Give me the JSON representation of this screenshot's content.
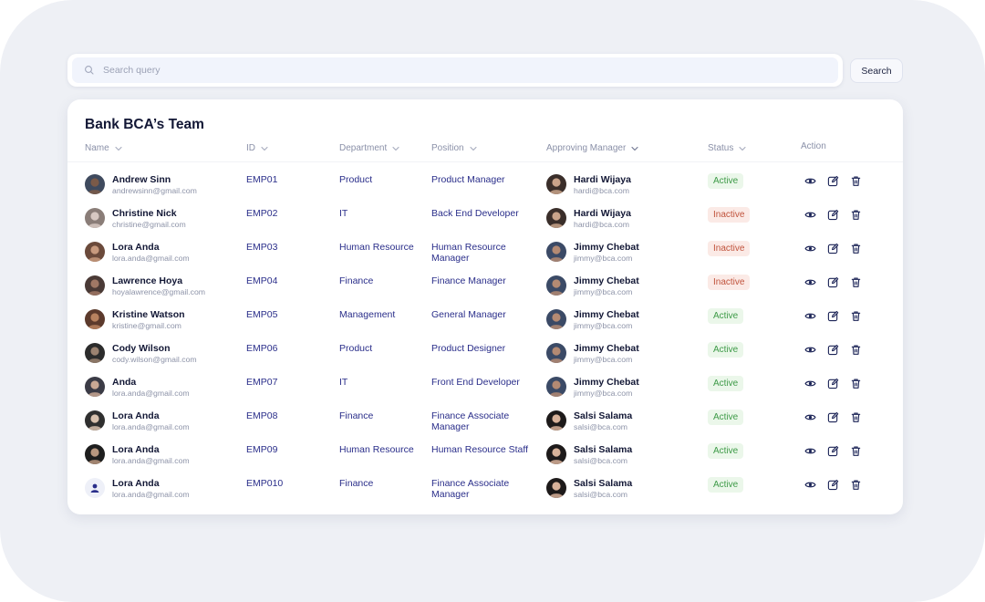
{
  "search": {
    "placeholder": "Search query",
    "button_label": "Search"
  },
  "team": {
    "title": "Bank BCA’s Team",
    "columns": {
      "name": "Name",
      "id": "ID",
      "department": "Department",
      "position": "Position",
      "manager": "Approving Manager",
      "status": "Status",
      "action": "Action"
    },
    "rows": [
      {
        "name": "Andrew Sinn",
        "email": "andrewsinn@gmail.com",
        "id": "EMP01",
        "department": "Product",
        "position": "Product Manager",
        "manager_name": "Hardi Wijaya",
        "manager_email": "hardi@bca.com",
        "status": "Active"
      },
      {
        "name": "Christine Nick",
        "email": "christine@gmail.com",
        "id": "EMP02",
        "department": "IT",
        "position": "Back End Developer",
        "manager_name": "Hardi Wijaya",
        "manager_email": "hardi@bca.com",
        "status": "Inactive"
      },
      {
        "name": "Lora Anda",
        "email": "lora.anda@gmail.com",
        "id": "EMP03",
        "department": "Human Resource",
        "position": "Human Resource Manager",
        "manager_name": "Jimmy Chebat",
        "manager_email": "jimmy@bca.com",
        "status": "Inactive"
      },
      {
        "name": "Lawrence Hoya",
        "email": "hoyalawrence@gmail.com",
        "id": "EMP04",
        "department": "Finance",
        "position": "Finance Manager",
        "manager_name": "Jimmy Chebat",
        "manager_email": "jimmy@bca.com",
        "status": "Inactive"
      },
      {
        "name": "Kristine Watson",
        "email": "kristine@gmail.com",
        "id": "EMP05",
        "department": "Management",
        "position": "General Manager",
        "manager_name": "Jimmy Chebat",
        "manager_email": "jimmy@bca.com",
        "status": "Active"
      },
      {
        "name": "Cody Wilson",
        "email": "cody.wilson@gmail.com",
        "id": "EMP06",
        "department": "Product",
        "position": "Product Designer",
        "manager_name": "Jimmy Chebat",
        "manager_email": "jimmy@bca.com",
        "status": "Active"
      },
      {
        "name": "Anda",
        "email": "lora.anda@gmail.com",
        "id": "EMP07",
        "department": "IT",
        "position": "Front End Developer",
        "manager_name": "Jimmy Chebat",
        "manager_email": "jimmy@bca.com",
        "status": "Active"
      },
      {
        "name": "Lora Anda",
        "email": "lora.anda@gmail.com",
        "id": "EMP08",
        "department": "Finance",
        "position": "Finance Associate Manager",
        "manager_name": "Salsi Salama",
        "manager_email": "salsi@bca.com",
        "status": "Active"
      },
      {
        "name": "Lora Anda",
        "email": "lora.anda@gmail.com",
        "id": "EMP09",
        "department": "Human Resource",
        "position": "Human Resource Staff",
        "manager_name": "Salsi Salama",
        "manager_email": "salsi@bca.com",
        "status": "Active"
      },
      {
        "name": "Lora Anda",
        "email": "lora.anda@gmail.com",
        "id": "EMP010",
        "department": "Finance",
        "position": "Finance Associate Manager",
        "manager_name": "Salsi Salama",
        "manager_email": "salsi@bca.com",
        "status": "Active"
      }
    ]
  },
  "colors": {
    "accent_text": "#2a2e8a",
    "title_text": "#121735",
    "active_badge_bg": "#ebf7ea",
    "active_badge_text": "#3d9a47",
    "inactive_badge_bg": "#fbeae6",
    "inactive_badge_text": "#c0533c",
    "background": "#eef0f5"
  },
  "icons": {
    "search": "search-icon",
    "sort": "chevron-down-icon",
    "view": "eye-icon",
    "edit": "edit-icon",
    "delete": "trash-icon",
    "default_avatar": "user-icon"
  }
}
